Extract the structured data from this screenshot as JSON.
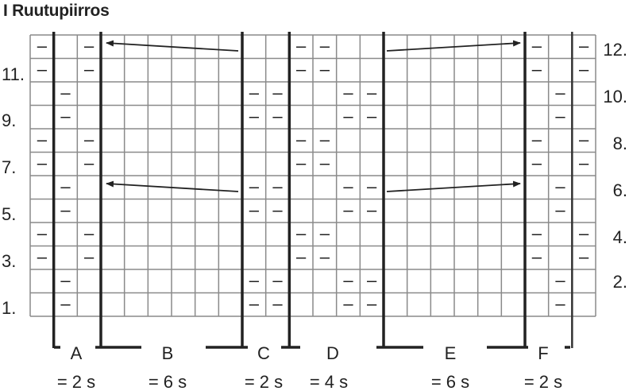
{
  "title": "I Ruutupiirros",
  "grid": {
    "columns": 24,
    "rows_top_to_bottom": [
      {
        "row": "12.",
        "purl_columns": [
          0,
          2,
          11,
          12,
          21,
          23
        ]
      },
      {
        "row": "11.",
        "purl_columns": [
          0,
          2,
          11,
          12,
          21,
          23
        ]
      },
      {
        "row": "10.",
        "purl_columns": [
          1,
          9,
          10,
          13,
          14,
          22
        ]
      },
      {
        "row": "9.",
        "purl_columns": [
          1,
          9,
          10,
          13,
          14,
          22
        ]
      },
      {
        "row": "8.",
        "purl_columns": [
          0,
          2,
          11,
          12,
          21,
          23
        ]
      },
      {
        "row": "7.",
        "purl_columns": [
          0,
          2,
          11,
          12,
          21,
          23
        ]
      },
      {
        "row": "6.",
        "purl_columns": [
          1,
          9,
          10,
          13,
          14,
          22
        ]
      },
      {
        "row": "5.",
        "purl_columns": [
          1,
          9,
          10,
          13,
          14,
          22
        ]
      },
      {
        "row": "4.",
        "purl_columns": [
          0,
          2,
          11,
          12,
          21,
          23
        ]
      },
      {
        "row": "3.",
        "purl_columns": [
          0,
          2,
          11,
          12,
          21,
          23
        ]
      },
      {
        "row": "2.",
        "purl_columns": [
          1,
          9,
          10,
          13,
          14,
          22
        ]
      },
      {
        "row": "1.",
        "purl_columns": [
          1,
          9,
          10,
          13,
          14,
          22
        ]
      }
    ],
    "purl_symbol": "–",
    "left_labels": [
      "11.",
      "9.",
      "7.",
      "5.",
      "3.",
      "1."
    ],
    "right_labels": [
      "12.",
      "10.",
      "8.",
      "6.",
      "4.",
      "2."
    ]
  },
  "sections": [
    {
      "name": "A",
      "count": "= 2 s"
    },
    {
      "name": "B",
      "count": "= 6 s"
    },
    {
      "name": "C",
      "count": "= 2 s"
    },
    {
      "name": "D",
      "count": "= 4 s"
    },
    {
      "name": "E",
      "count": "= 6 s"
    },
    {
      "name": "F",
      "count": "= 2 s"
    }
  ],
  "arrows": [
    {
      "row": "12.",
      "direction": "outward"
    },
    {
      "row": "6.",
      "direction": "outward"
    }
  ]
}
